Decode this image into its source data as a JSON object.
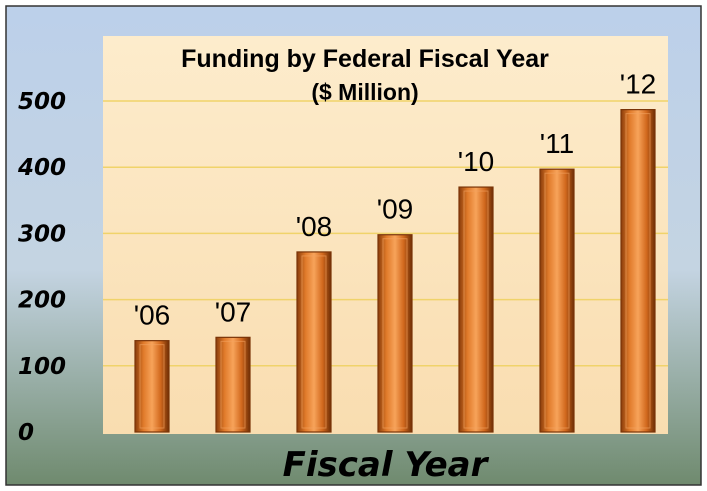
{
  "chart_data": {
    "type": "bar",
    "title": "Funding by Federal Fiscal Year",
    "subtitle": "($ Million)",
    "xlabel": "Fiscal Year",
    "ylabel": "",
    "categories": [
      "'06",
      "'07",
      "'08",
      "'09",
      "'10",
      "'11",
      "'12"
    ],
    "values": [
      138,
      143,
      272,
      298,
      370,
      397,
      487
    ],
    "ylim": [
      0,
      500
    ],
    "yticks": [
      0,
      100,
      200,
      300,
      400,
      500
    ],
    "grid": true,
    "legend": "none",
    "colors": {
      "bar": "#d2691e",
      "bar_light": "#f4a460",
      "bar_dark": "#7a3408",
      "plot_background": "#fde9c4",
      "gridline": "#f0d36a",
      "outer_top": "#bcd0ea",
      "outer_bottom": "#6f8a6e"
    }
  }
}
